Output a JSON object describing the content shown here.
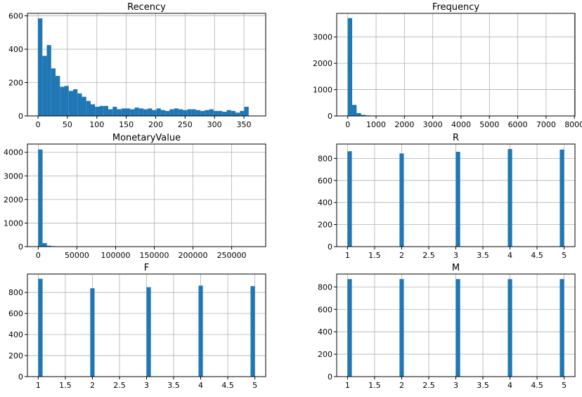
{
  "chart_data": [
    {
      "type": "bar",
      "title": "Recency",
      "xlim": [
        -18,
        387
      ],
      "ylim": [
        0,
        615
      ],
      "xticks": [
        0,
        50,
        100,
        150,
        200,
        250,
        300,
        350
      ],
      "yticks": [
        0,
        200,
        400,
        600
      ],
      "grid": true,
      "bins": {
        "start": 0,
        "width": 7.46,
        "counts": [
          585,
          360,
          425,
          285,
          240,
          175,
          180,
          150,
          160,
          135,
          115,
          90,
          70,
          55,
          60,
          60,
          40,
          55,
          40,
          45,
          45,
          40,
          50,
          45,
          40,
          45,
          35,
          45,
          35,
          30,
          40,
          45,
          40,
          35,
          40,
          40,
          35,
          30,
          35,
          40,
          30,
          30,
          25,
          35,
          30,
          20,
          30,
          55
        ]
      }
    },
    {
      "type": "bar",
      "title": "Frequency",
      "xlim": [
        -390,
        8020
      ],
      "ylim": [
        0,
        3900
      ],
      "xticks": [
        0,
        1000,
        2000,
        3000,
        4000,
        5000,
        6000,
        7000,
        8000
      ],
      "yticks": [
        0,
        1000,
        2000,
        3000
      ],
      "grid": true,
      "bins": {
        "start": 0,
        "width": 156.6,
        "counts": [
          3720,
          420,
          110,
          40,
          20,
          10,
          5,
          4,
          2,
          2,
          1,
          1,
          1,
          1,
          0,
          0,
          0,
          0,
          0,
          0,
          0,
          0,
          0,
          0,
          0,
          0,
          0,
          0,
          0,
          0,
          0,
          0,
          0,
          0,
          0,
          0,
          0,
          0,
          0,
          0,
          0,
          0,
          0,
          0,
          0,
          0,
          0,
          0,
          0,
          1
        ]
      }
    },
    {
      "type": "bar",
      "title": "MonetaryValue",
      "xlim": [
        -14000,
        294000
      ],
      "ylim": [
        0,
        4350
      ],
      "xticks": [
        0,
        50000,
        100000,
        150000,
        200000,
        250000
      ],
      "yticks": [
        0,
        1000,
        2000,
        3000,
        4000
      ],
      "grid": true,
      "bins": {
        "start": 0,
        "width": 5600,
        "counts": [
          4120,
          150,
          40,
          20,
          10,
          5,
          3,
          2,
          1,
          1,
          1,
          1,
          0,
          0,
          0,
          0,
          0,
          0,
          0,
          0,
          0,
          0,
          0,
          0,
          0,
          0,
          0,
          0,
          0,
          0,
          0,
          0,
          0,
          0,
          0,
          0,
          0,
          0,
          0,
          0,
          0,
          0,
          0,
          0,
          0,
          0,
          0,
          0,
          0,
          1
        ]
      }
    },
    {
      "type": "bar",
      "title": "R",
      "xlim": [
        0.8,
        5.2
      ],
      "ylim": [
        0,
        930
      ],
      "xticks": [
        1.0,
        1.5,
        2.0,
        2.5,
        3.0,
        3.5,
        4.0,
        4.5,
        5.0
      ],
      "yticks": [
        0,
        200,
        400,
        600,
        800
      ],
      "grid": true,
      "bins": {
        "start": 1.0,
        "width": 0.08,
        "counts": [
          865,
          0,
          0,
          0,
          0,
          0,
          0,
          0,
          0,
          0,
          0,
          0,
          845,
          0,
          0,
          0,
          0,
          0,
          0,
          0,
          0,
          0,
          0,
          0,
          0,
          860,
          0,
          0,
          0,
          0,
          0,
          0,
          0,
          0,
          0,
          0,
          0,
          885,
          0,
          0,
          0,
          0,
          0,
          0,
          0,
          0,
          0,
          0,
          0,
          880
        ]
      }
    },
    {
      "type": "bar",
      "title": "F",
      "xlim": [
        0.8,
        5.2
      ],
      "ylim": [
        0,
        975
      ],
      "xticks": [
        1.0,
        1.5,
        2.0,
        2.5,
        3.0,
        3.5,
        4.0,
        4.5,
        5.0
      ],
      "yticks": [
        0,
        200,
        400,
        600,
        800
      ],
      "grid": true,
      "bins": {
        "start": 1.0,
        "width": 0.08,
        "counts": [
          930,
          0,
          0,
          0,
          0,
          0,
          0,
          0,
          0,
          0,
          0,
          0,
          840,
          0,
          0,
          0,
          0,
          0,
          0,
          0,
          0,
          0,
          0,
          0,
          0,
          850,
          0,
          0,
          0,
          0,
          0,
          0,
          0,
          0,
          0,
          0,
          0,
          865,
          0,
          0,
          0,
          0,
          0,
          0,
          0,
          0,
          0,
          0,
          0,
          860
        ]
      }
    },
    {
      "type": "bar",
      "title": "M",
      "xlim": [
        0.8,
        5.2
      ],
      "ylim": [
        0,
        915
      ],
      "xticks": [
        1.0,
        1.5,
        2.0,
        2.5,
        3.0,
        3.5,
        4.0,
        4.5,
        5.0
      ],
      "yticks": [
        0,
        200,
        400,
        600,
        800
      ],
      "grid": true,
      "bins": {
        "start": 1.0,
        "width": 0.08,
        "counts": [
          870,
          0,
          0,
          0,
          0,
          0,
          0,
          0,
          0,
          0,
          0,
          0,
          870,
          0,
          0,
          0,
          0,
          0,
          0,
          0,
          0,
          0,
          0,
          0,
          0,
          870,
          0,
          0,
          0,
          0,
          0,
          0,
          0,
          0,
          0,
          0,
          0,
          870,
          0,
          0,
          0,
          0,
          0,
          0,
          0,
          0,
          0,
          0,
          0,
          870
        ]
      }
    }
  ]
}
